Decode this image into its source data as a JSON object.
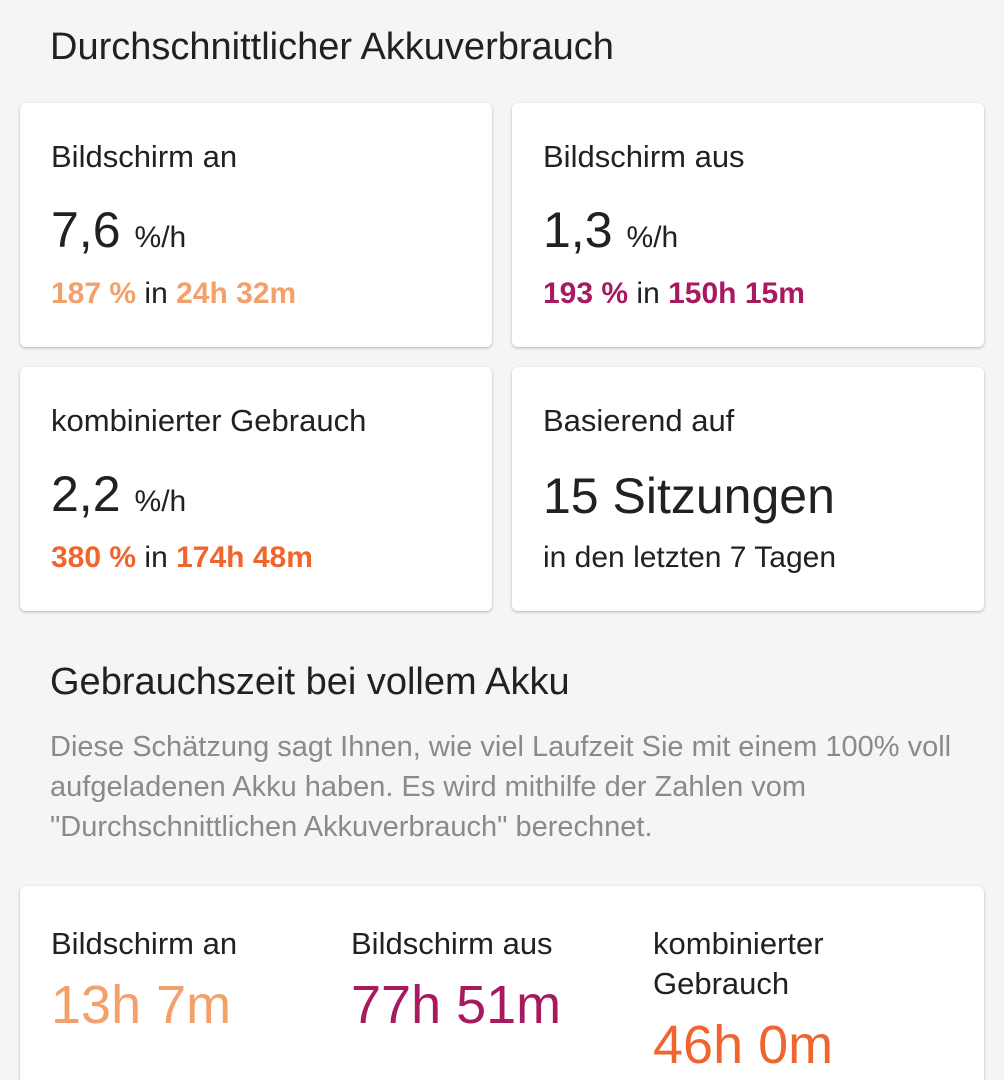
{
  "avg_usage": {
    "title": "Durchschnittlicher Akkuverbrauch",
    "screen_on": {
      "label": "Bildschirm an",
      "rate": "7,6",
      "unit": "%/h",
      "percent": "187 %",
      "connector": "in",
      "duration": "24h 32m",
      "color": "#f4a06a"
    },
    "screen_off": {
      "label": "Bildschirm aus",
      "rate": "1,3",
      "unit": "%/h",
      "percent": "193 %",
      "connector": "in",
      "duration": "150h 15m",
      "color": "#a8195f"
    },
    "combined": {
      "label": "kombinierter Gebrauch",
      "rate": "2,2",
      "unit": "%/h",
      "percent": "380 %",
      "connector": "in",
      "duration": "174h 48m",
      "color": "#f0652d"
    },
    "based_on": {
      "label": "Basierend auf",
      "sessions": "15 Sitzungen",
      "period": "in den letzten 7 Tagen"
    }
  },
  "full_battery": {
    "title": "Gebrauchszeit bei vollem Akku",
    "description": "Diese Schätzung sagt Ihnen, wie viel Laufzeit Sie mit einem 100% voll aufgeladenen Akku haben. Es wird mithilfe der Zahlen vom \"Durchschnittlichen Akkuverbrauch\" berechnet.",
    "screen_on": {
      "label": "Bildschirm an",
      "value": "13h 7m",
      "color": "#f4a06a"
    },
    "screen_off": {
      "label": "Bildschirm aus",
      "value": "77h 51m",
      "color": "#a8195f"
    },
    "combined": {
      "label_line1": "kombinierter",
      "label_line2": "Gebrauch",
      "value": "46h 0m",
      "color": "#f0652d"
    }
  }
}
